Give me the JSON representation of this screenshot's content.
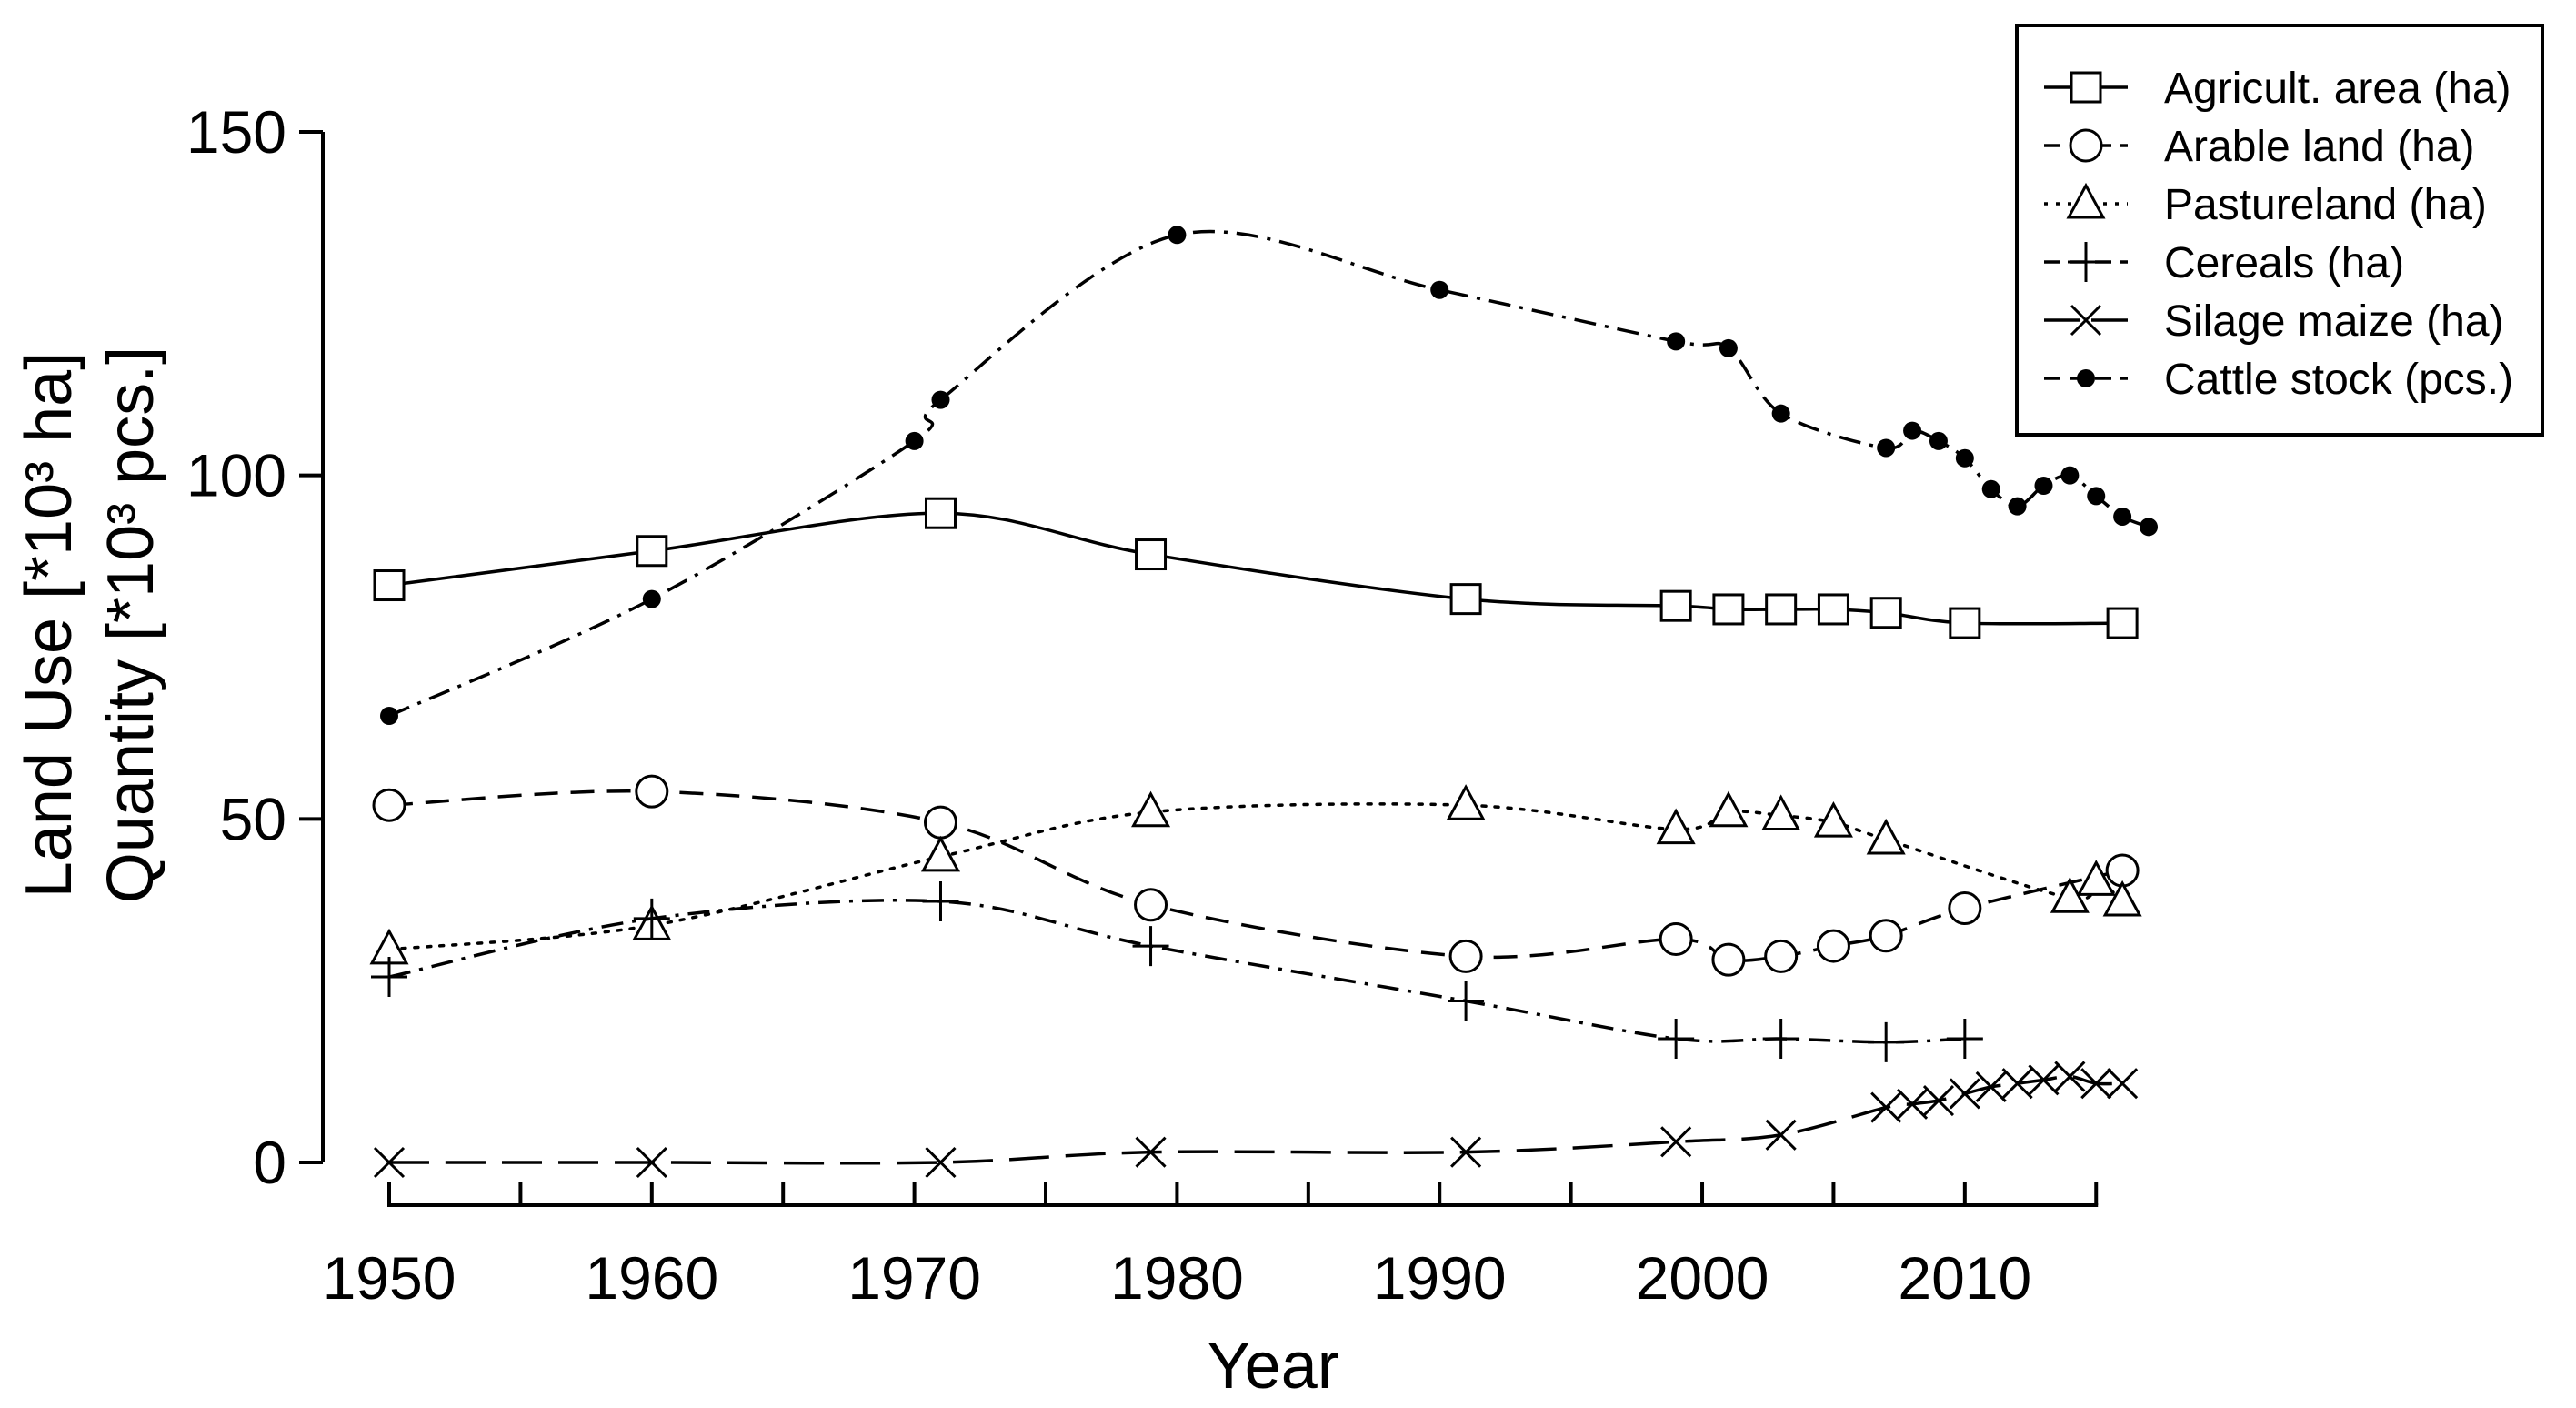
{
  "chart_data": {
    "type": "line",
    "xlabel": "Year",
    "ylabel_lines": [
      "Land Use [*10³ ha]",
      "Quantity [*10³ pcs.]"
    ],
    "xlim": [
      1950,
      2017
    ],
    "ylim": [
      0,
      150
    ],
    "x_ticks": [
      1950,
      1960,
      1970,
      1980,
      1990,
      2000,
      2010
    ],
    "x_minor_step": 5,
    "y_ticks": [
      0,
      50,
      100,
      150
    ],
    "grid": false,
    "legend_position": "top-right",
    "series": [
      {
        "name": "Agricult. area (ha)",
        "marker": "square",
        "dash": "solid",
        "x": [
          1950,
          1960,
          1971,
          1979,
          1991,
          1999,
          2001,
          2003,
          2005,
          2007,
          2010,
          2016
        ],
        "y": [
          84,
          89,
          94.5,
          88.5,
          82,
          81,
          80.5,
          80.5,
          80.5,
          80,
          78.5,
          78.5
        ]
      },
      {
        "name": "Arable land (ha)",
        "marker": "circle",
        "dash": "dashed",
        "x": [
          1950,
          1960,
          1971,
          1979,
          1991,
          1999,
          2001,
          2003,
          2005,
          2007,
          2010,
          2016
        ],
        "y": [
          52,
          54,
          49.5,
          37.5,
          30,
          32.5,
          29.5,
          30,
          31.5,
          33,
          37,
          42.5
        ]
      },
      {
        "name": "Pastureland (ha)",
        "marker": "triangle",
        "dash": "dotted",
        "x": [
          1950,
          1960,
          1971,
          1979,
          1991,
          1999,
          2001,
          2003,
          2005,
          2007,
          2014,
          2015,
          2016
        ],
        "y": [
          31,
          34.5,
          44.5,
          51,
          52,
          48.5,
          51,
          50.5,
          49.5,
          47,
          38.5,
          41,
          38
        ]
      },
      {
        "name": "Cereals (ha)",
        "marker": "plus",
        "dash": "dashdot",
        "x": [
          1950,
          1960,
          1971,
          1979,
          1991,
          1999,
          2003,
          2007,
          2010
        ],
        "y": [
          27,
          35.5,
          38,
          31.5,
          23.5,
          18,
          18,
          17.5,
          18
        ]
      },
      {
        "name": "Silage maize (ha)",
        "marker": "cross",
        "dash": "longdash",
        "x": [
          1950,
          1960,
          1971,
          1979,
          1991,
          1999,
          2003,
          2007,
          2008,
          2009,
          2010,
          2011,
          2012,
          2013,
          2014,
          2015,
          2016
        ],
        "y": [
          0,
          0,
          0,
          1.5,
          1.5,
          3,
          4,
          8,
          8.5,
          9,
          10,
          11,
          11.5,
          12,
          12.5,
          11.5,
          11.5
        ]
      },
      {
        "name": "Cattle stock (pcs.)",
        "marker": "dot",
        "dash": "dashdot",
        "x": [
          1950,
          1960,
          1970,
          1971,
          1980,
          1990,
          1999,
          2001,
          2003,
          2007,
          2008,
          2009,
          2010,
          2011,
          2012,
          2013,
          2014,
          2015,
          2016,
          2017
        ],
        "y": [
          65,
          82,
          105,
          111,
          135,
          127,
          119.5,
          118.5,
          109,
          104,
          106.5,
          105,
          102.5,
          98,
          95.5,
          98.5,
          100,
          97,
          94,
          92.5
        ]
      }
    ]
  }
}
